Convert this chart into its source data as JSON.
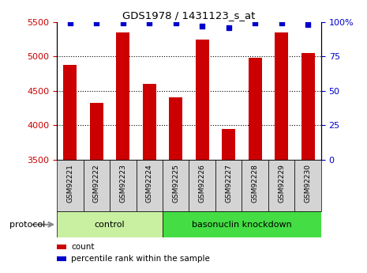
{
  "title": "GDS1978 / 1431123_s_at",
  "samples": [
    "GSM92221",
    "GSM92222",
    "GSM92223",
    "GSM92224",
    "GSM92225",
    "GSM92226",
    "GSM92227",
    "GSM92228",
    "GSM92229",
    "GSM92230"
  ],
  "counts": [
    4870,
    4320,
    5350,
    4600,
    4400,
    5240,
    3950,
    4980,
    5350,
    5050
  ],
  "percentile_ranks": [
    99,
    99,
    99,
    99,
    99,
    97,
    96,
    99,
    99,
    98
  ],
  "ylim_left": [
    3500,
    5500
  ],
  "yticks_left": [
    3500,
    4000,
    4500,
    5000,
    5500
  ],
  "yticks_right": [
    0,
    25,
    50,
    75,
    100
  ],
  "bar_color": "#cc0000",
  "dot_color": "#0000cc",
  "n_control": 4,
  "control_label": "control",
  "knockdown_label": "basonuclin knockdown",
  "protocol_label": "protocol",
  "legend_count": "count",
  "legend_percentile": "percentile rank within the sample",
  "bar_width": 0.5,
  "label_color_left": "#cc0000",
  "label_color_right": "#0000cc",
  "ctrl_color": "#c8f0a0",
  "kd_color": "#44dd44",
  "tick_bg_color": "#d4d4d4"
}
